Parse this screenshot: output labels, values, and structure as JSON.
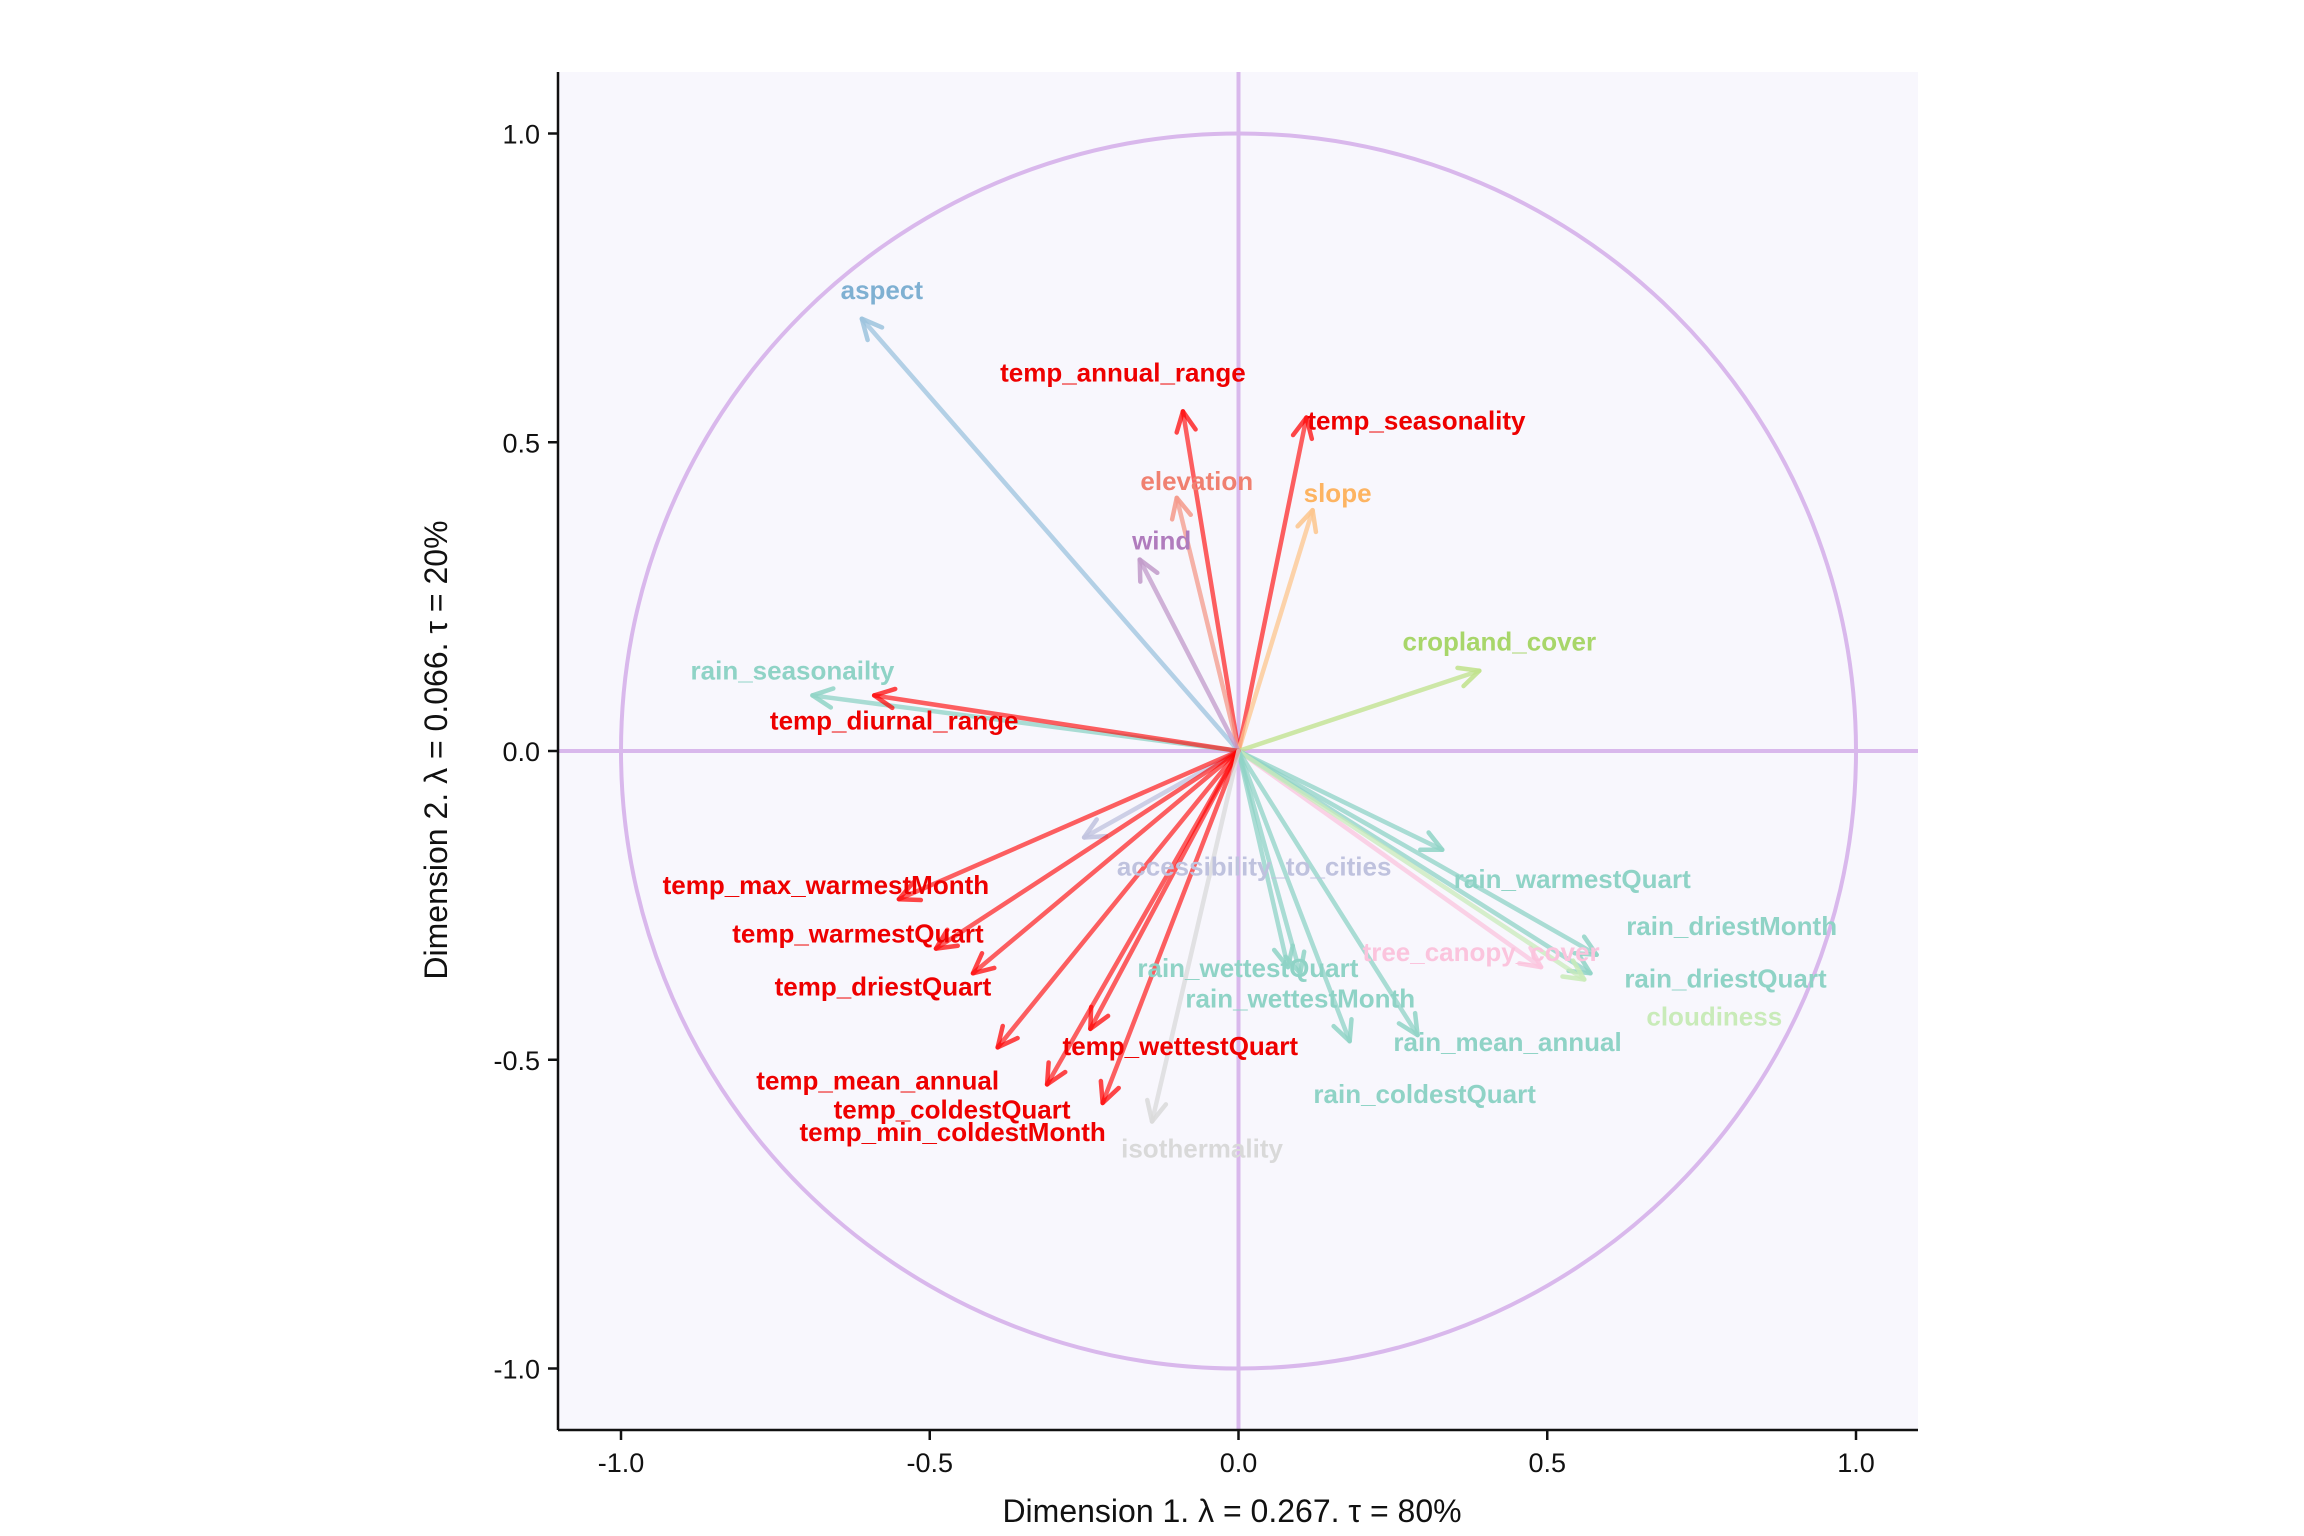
{
  "chart_data": {
    "type": "scatter",
    "subtype": "correlation-circle-biplot",
    "xlabel": "Dimension 1.   λ = 0.267.  τ = 80%",
    "ylabel": "Dimension 2.   λ = 0.066.  τ = 20%",
    "xlim": [
      -1.1,
      1.1
    ],
    "ylim": [
      -1.1,
      1.1
    ],
    "x_ticks": [
      "-1.0",
      "-0.5",
      "0.0",
      "0.5",
      "1.0"
    ],
    "y_ticks": [
      "1.0",
      "0.5",
      "0.0",
      "-0.5",
      "-1.0"
    ],
    "unit_circle": true,
    "reference_lines": [
      0,
      0
    ],
    "colors": {
      "panel": "#f8f7fd",
      "circle": "#d9b8ec",
      "temperature": "#ff0000",
      "rain": "#8fd3c6",
      "aspect": "#9cc3dd",
      "elevation": "#f4998a",
      "slope": "#fdc68c",
      "wind": "#c19ac9",
      "cropland_cover": "#bfe28a",
      "accessibility_to_cities": "#bfc2de",
      "tree_canopy_cover": "#fbc4dd",
      "cloudiness": "#c9ebb9",
      "isothermality": "#d9d9d9"
    },
    "variables": [
      {
        "name": "aspect",
        "x": -0.61,
        "y": 0.7,
        "color": "#9cc3dd",
        "label_color": "#7fb0d2"
      },
      {
        "name": "temp_annual_range",
        "x": -0.09,
        "y": 0.55,
        "color": "#ff0000",
        "label_color": "#ee0000"
      },
      {
        "name": "temp_seasonality",
        "x": 0.11,
        "y": 0.54,
        "color": "#ff0000",
        "label_color": "#ee0000"
      },
      {
        "name": "elevation",
        "x": -0.1,
        "y": 0.41,
        "color": "#f4998a",
        "label_color": "#f08070"
      },
      {
        "name": "slope",
        "x": 0.12,
        "y": 0.39,
        "color": "#fdc68c",
        "label_color": "#fdb462"
      },
      {
        "name": "wind",
        "x": -0.16,
        "y": 0.31,
        "color": "#c19ac9",
        "label_color": "#b07cbd"
      },
      {
        "name": "cropland_cover",
        "x": 0.39,
        "y": 0.13,
        "color": "#bfe28a",
        "label_color": "#a8d66a"
      },
      {
        "name": "rain_seasonailty",
        "x": -0.69,
        "y": 0.09,
        "color": "#8fd3c6",
        "label_color": "#8fd3c6"
      },
      {
        "name": "temp_diurnal_range",
        "x": -0.59,
        "y": 0.09,
        "color": "#ff0000",
        "label_color": "#ee0000"
      },
      {
        "name": "accessibility_to_cities",
        "x": -0.25,
        "y": -0.14,
        "color": "#bfc2de",
        "label_color": "#bfc2de"
      },
      {
        "name": "temp_max_warmestMonth",
        "x": -0.55,
        "y": -0.24,
        "color": "#ff0000",
        "label_color": "#ee0000"
      },
      {
        "name": "rain_warmestQuart",
        "x": 0.33,
        "y": -0.16,
        "color": "#8fd3c6",
        "label_color": "#8fd3c6"
      },
      {
        "name": "temp_warmestQuart",
        "x": -0.49,
        "y": -0.32,
        "color": "#ff0000",
        "label_color": "#ee0000"
      },
      {
        "name": "rain_driestMonth",
        "x": 0.58,
        "y": -0.33,
        "color": "#8fd3c6",
        "label_color": "#8fd3c6"
      },
      {
        "name": "rain_wettestQuart",
        "x": 0.08,
        "y": -0.35,
        "color": "#8fd3c6",
        "label_color": "#8fd3c6"
      },
      {
        "name": "tree_canopy_cover",
        "x": 0.49,
        "y": -0.35,
        "color": "#fbc4dd",
        "label_color": "#fbc4dd"
      },
      {
        "name": "rain_driestQuart",
        "x": 0.57,
        "y": -0.36,
        "color": "#8fd3c6",
        "label_color": "#8fd3c6"
      },
      {
        "name": "cloudiness",
        "x": 0.56,
        "y": -0.37,
        "color": "#c9ebb9",
        "label_color": "#c9ebb9"
      },
      {
        "name": "temp_driestQuart",
        "x": -0.43,
        "y": -0.36,
        "color": "#ff0000",
        "label_color": "#ee0000"
      },
      {
        "name": "rain_wettestMonth",
        "x": 0.1,
        "y": -0.36,
        "color": "#8fd3c6",
        "label_color": "#8fd3c6"
      },
      {
        "name": "rain_mean_annual",
        "x": 0.29,
        "y": -0.46,
        "color": "#8fd3c6",
        "label_color": "#8fd3c6"
      },
      {
        "name": "temp_mean_annual",
        "x": -0.39,
        "y": -0.48,
        "color": "#ff0000",
        "label_color": "#ee0000"
      },
      {
        "name": "temp_wettestQuart",
        "x": -0.24,
        "y": -0.45,
        "color": "#ff0000",
        "label_color": "#ee0000"
      },
      {
        "name": "rain_coldestQuart",
        "x": 0.18,
        "y": -0.47,
        "color": "#8fd3c6",
        "label_color": "#8fd3c6"
      },
      {
        "name": "temp_coldestQuart",
        "x": -0.31,
        "y": -0.54,
        "color": "#ff0000",
        "label_color": "#ee0000"
      },
      {
        "name": "temp_min_coldestMonth",
        "x": -0.22,
        "y": -0.57,
        "color": "#ff0000",
        "label_color": "#ee0000"
      },
      {
        "name": "isothermality",
        "x": -0.14,
        "y": -0.6,
        "color": "#d9d9d9",
        "label_color": "#d9d9d9"
      }
    ]
  }
}
